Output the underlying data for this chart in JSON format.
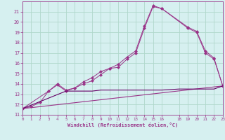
{
  "background_color": "#d6f0f0",
  "grid_color": "#b0d8cc",
  "line_color": "#993388",
  "xlabel": "Windchill (Refroidissement éolien,°C)",
  "xlim": [
    0,
    23
  ],
  "ylim": [
    11,
    22
  ],
  "yticks": [
    11,
    12,
    13,
    14,
    15,
    16,
    17,
    18,
    19,
    20,
    21
  ],
  "xticks": [
    0,
    1,
    2,
    3,
    4,
    5,
    6,
    7,
    8,
    9,
    10,
    11,
    12,
    13,
    14,
    15,
    16,
    18,
    19,
    20,
    21,
    22,
    23
  ],
  "line1_x": [
    0,
    1,
    2,
    3,
    4,
    5,
    6,
    7,
    8,
    9,
    10,
    11,
    12,
    13,
    14,
    15,
    16,
    19,
    20,
    21,
    22,
    23
  ],
  "line1_y": [
    11.6,
    11.8,
    12.2,
    13.3,
    13.9,
    13.3,
    13.6,
    14.0,
    14.3,
    14.9,
    15.5,
    15.6,
    16.4,
    17.0,
    19.4,
    21.5,
    21.3,
    19.5,
    19.1,
    17.2,
    16.5,
    13.8
  ],
  "line2_x": [
    0,
    3,
    4,
    5,
    6,
    7,
    8,
    9,
    10,
    11,
    12,
    13,
    14,
    15,
    16,
    19,
    20,
    21,
    22,
    23
  ],
  "line2_y": [
    11.6,
    13.3,
    14.0,
    13.4,
    13.6,
    14.2,
    14.6,
    15.2,
    15.5,
    15.9,
    16.6,
    17.2,
    19.6,
    21.6,
    21.3,
    19.4,
    19.0,
    17.0,
    16.4,
    13.8
  ],
  "line3_x": [
    0,
    23
  ],
  "line3_y": [
    11.6,
    13.8
  ],
  "line4_x": [
    0,
    5,
    6,
    7,
    8,
    9,
    10,
    11,
    12,
    13,
    14,
    15,
    16,
    18,
    19,
    20,
    21,
    22,
    23
  ],
  "line4_y": [
    11.6,
    13.3,
    13.3,
    13.3,
    13.3,
    13.4,
    13.4,
    13.4,
    13.4,
    13.4,
    13.4,
    13.4,
    13.4,
    13.5,
    13.5,
    13.5,
    13.5,
    13.5,
    13.8
  ],
  "marker_size": 2.5
}
